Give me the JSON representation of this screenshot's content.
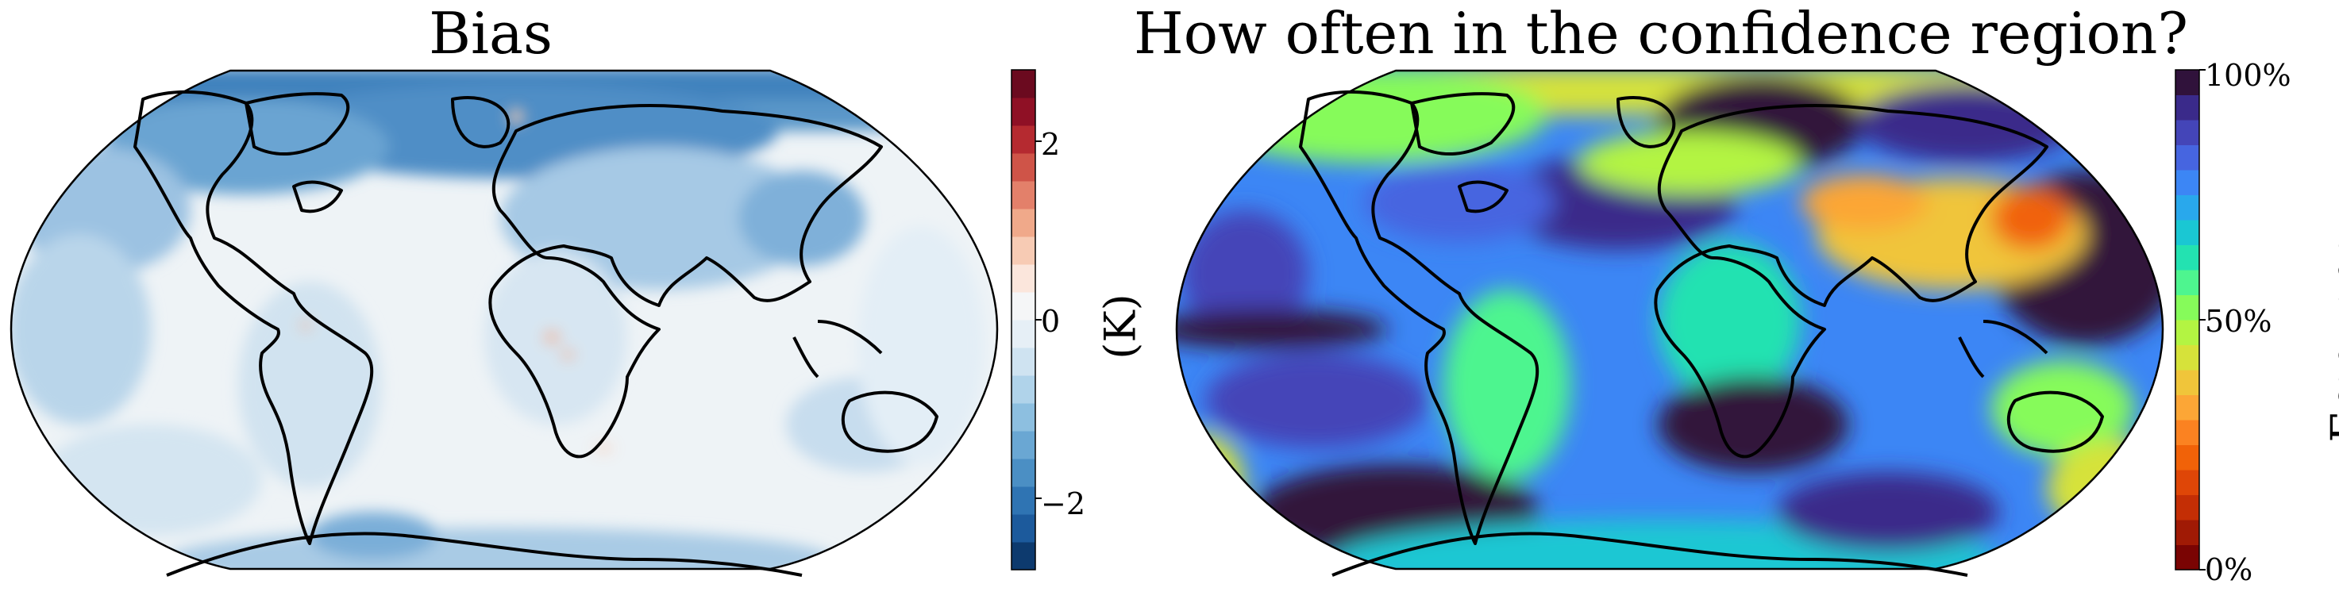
{
  "left_panel": {
    "title": "Bias",
    "colorbar": {
      "label": "(K)",
      "tick_labels": [
        "2",
        "0",
        "−2"
      ],
      "ticks": [
        2,
        0,
        -2
      ],
      "range": [
        -2.8,
        2.8
      ],
      "colormap": "RdBu_r",
      "colors": [
        "#0d3a6e",
        "#1c5a9c",
        "#2f74b3",
        "#4b8fc4",
        "#6aa7d3",
        "#8dbfe0",
        "#b0d3ea",
        "#cfe3f1",
        "#e6eff6",
        "#f5f6f7",
        "#fbe6dc",
        "#f7cbb4",
        "#f0a98a",
        "#e3806a",
        "#cf5448",
        "#b52a30",
        "#8f1025",
        "#6b0a1f"
      ]
    },
    "description_colors": {
      "land_base": "#dfeaf3",
      "ocean_base": "#eef3f6",
      "arctic": "#3f82bd"
    }
  },
  "right_panel": {
    "title": "How often in the confidence region?",
    "colorbar": {
      "label": "Frequency",
      "tick_labels": [
        "100%",
        "50%",
        "0%"
      ],
      "ticks": [
        100,
        50,
        0
      ],
      "range": [
        0,
        100
      ],
      "colormap": "turbo",
      "colors": [
        "#7a0403",
        "#a01a05",
        "#c42e05",
        "#df4607",
        "#f16208",
        "#fb8221",
        "#fca636",
        "#f0c53a",
        "#d6e23a",
        "#b3f442",
        "#86fb5a",
        "#4ef58f",
        "#23e2b1",
        "#1ac7d3",
        "#29a8ec",
        "#3c86f5",
        "#4665e0",
        "#4445b8",
        "#3a2a8a",
        "#30123b"
      ]
    }
  }
}
